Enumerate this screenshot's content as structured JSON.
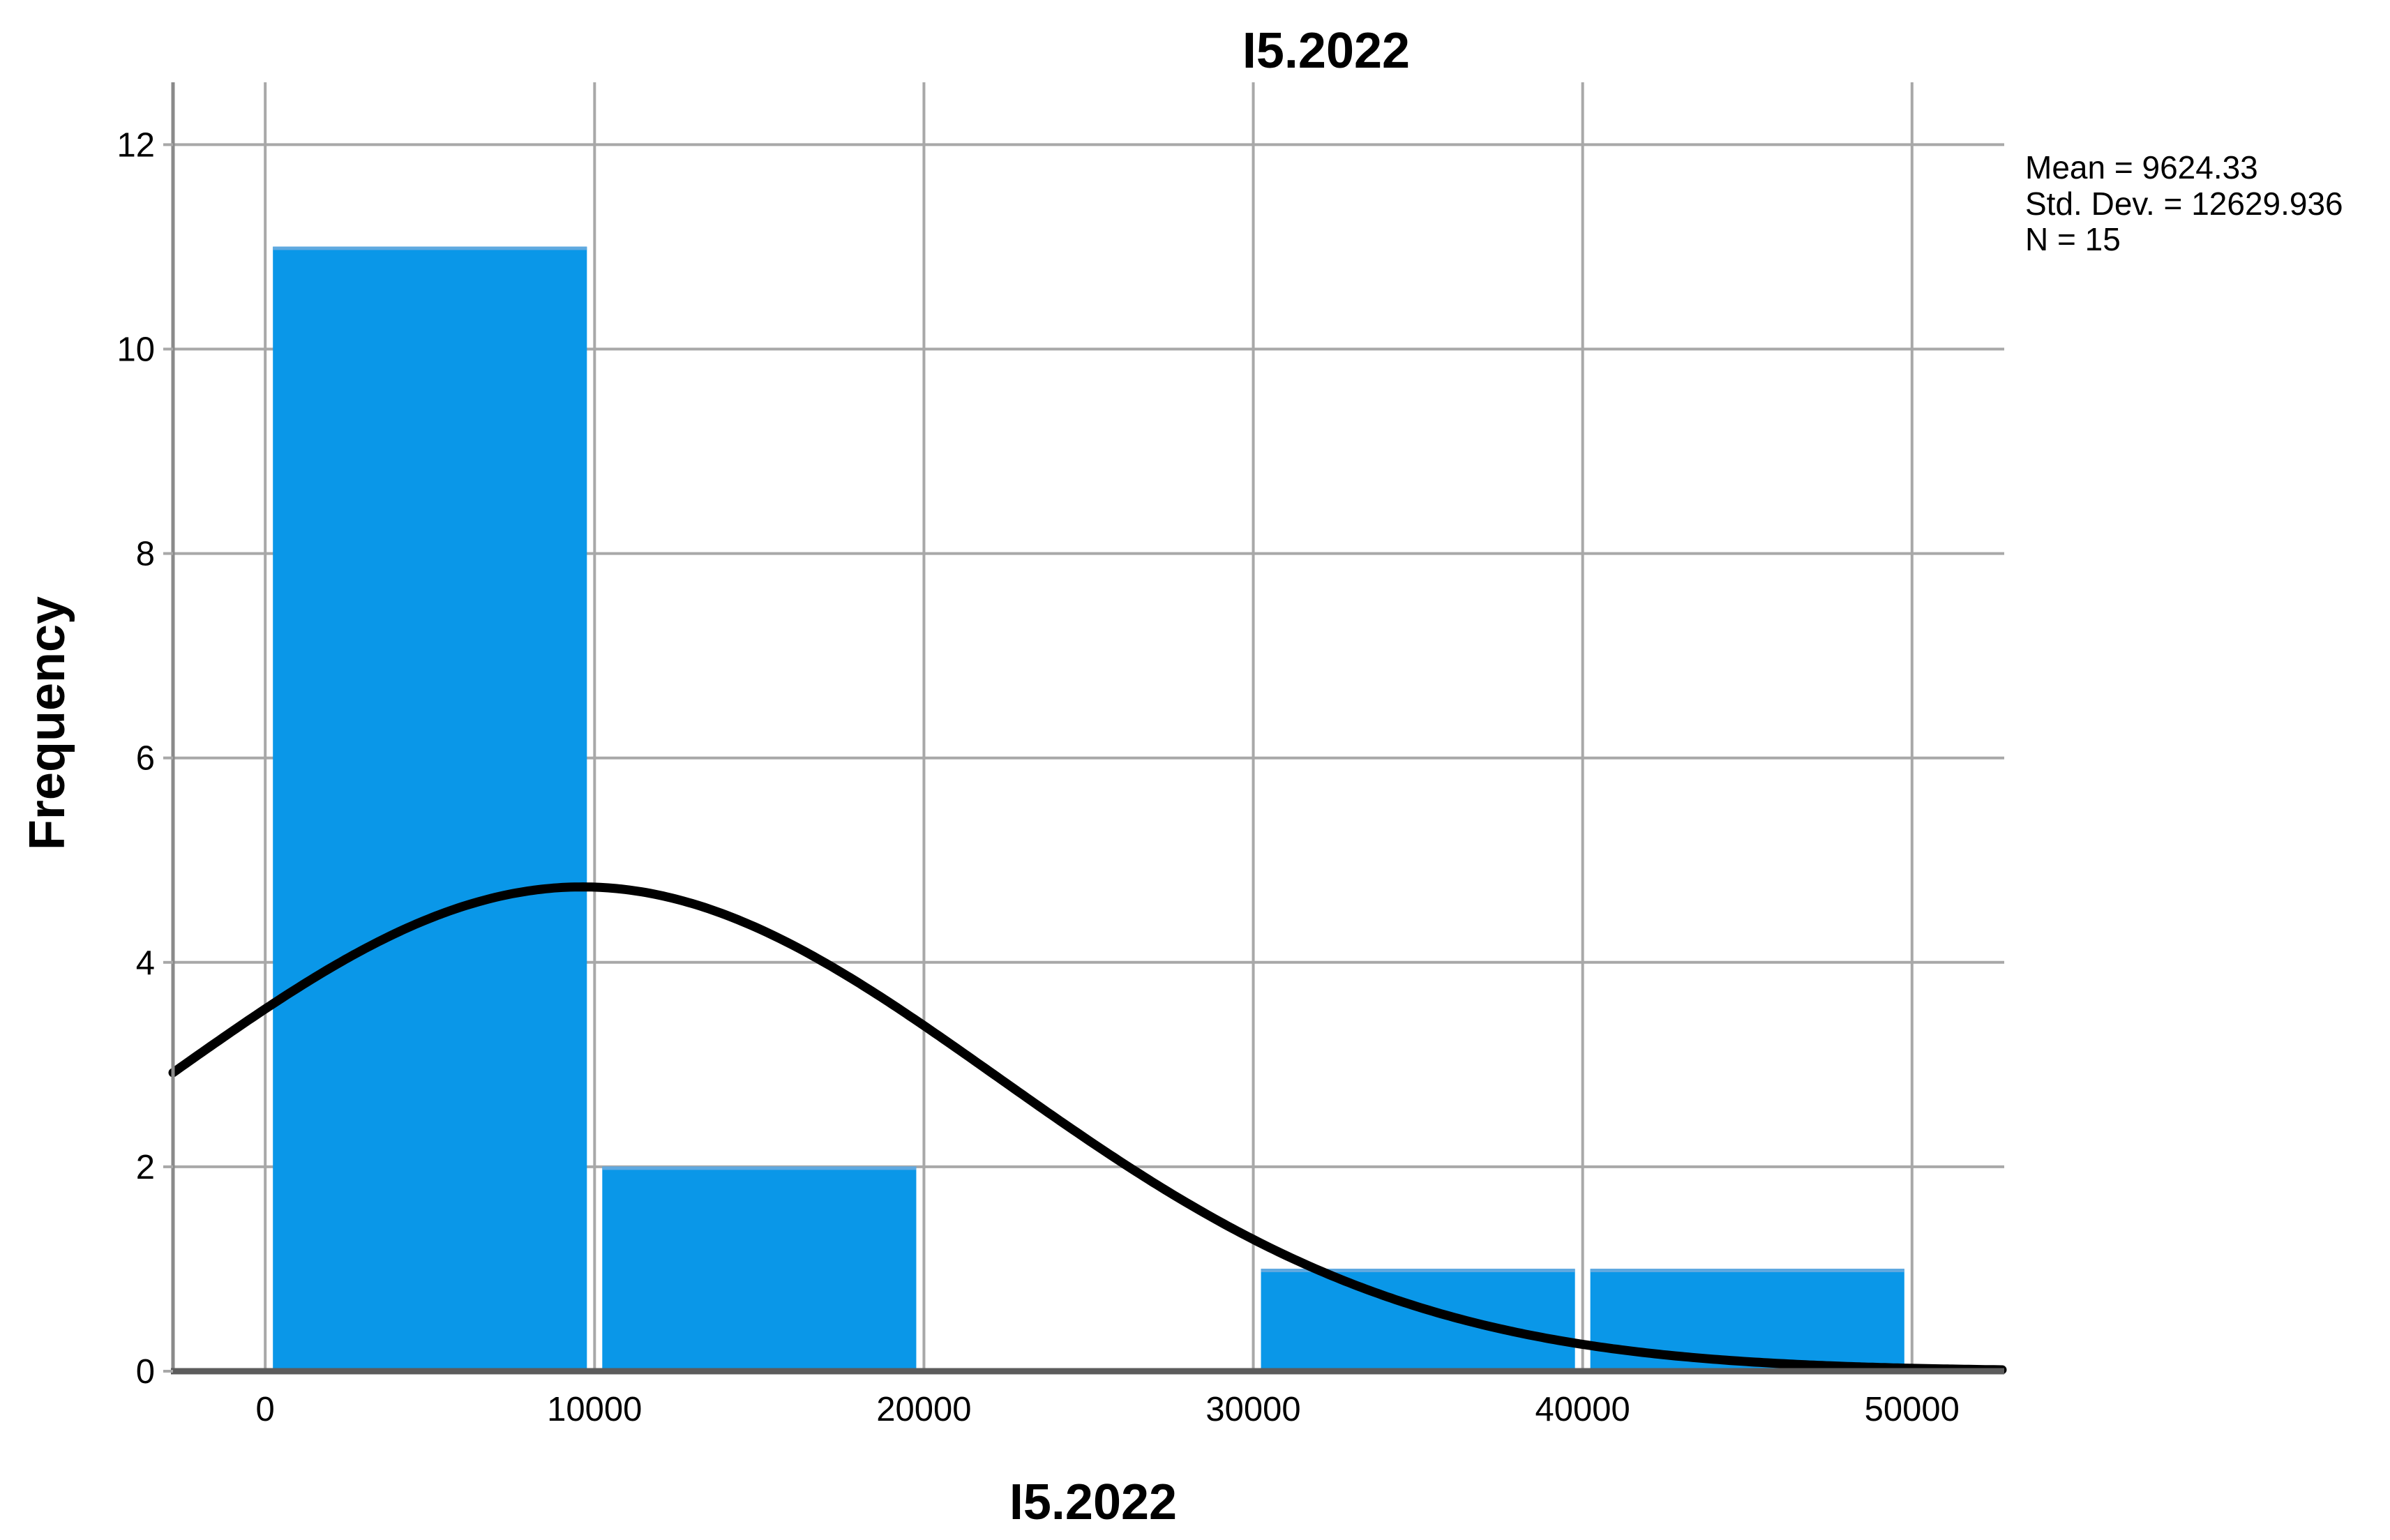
{
  "title": "I5.2022",
  "stats": {
    "mean": "Mean = 9624.33",
    "std_dev": "Std. Dev. = 12629.936",
    "n": "N = 15"
  },
  "chart_data": {
    "type": "bar",
    "subtype": "histogram-with-normal-curve",
    "title": "I5.2022",
    "xlabel": "I5.2022",
    "ylabel": "Frequency",
    "x_ticks": [
      0,
      10000,
      20000,
      30000,
      40000,
      50000
    ],
    "y_ticks": [
      0,
      2,
      4,
      6,
      8,
      10,
      12
    ],
    "xlim": [
      -2800,
      52800
    ],
    "ylim": [
      0,
      12.61
    ],
    "grid": true,
    "bin_width": 10000,
    "bins": [
      {
        "start": 0,
        "end": 10000,
        "count": 11
      },
      {
        "start": 10000,
        "end": 20000,
        "count": 2
      },
      {
        "start": 20000,
        "end": 30000,
        "count": 0
      },
      {
        "start": 30000,
        "end": 40000,
        "count": 1
      },
      {
        "start": 40000,
        "end": 50000,
        "count": 1
      }
    ],
    "normal_curve": {
      "mean": 9624.33,
      "std_dev": 12629.936,
      "n": 15
    },
    "legend_position": "top-right-outside",
    "colors": {
      "bar_fill": "#0a97e8",
      "bar_top_edge": "#5fa9e0",
      "curve": "#000000",
      "gridline": "#a8a8a8",
      "y_axis": "#8a8a8a",
      "x_axis": "#5c5c5c",
      "background": "#ffffff"
    }
  }
}
